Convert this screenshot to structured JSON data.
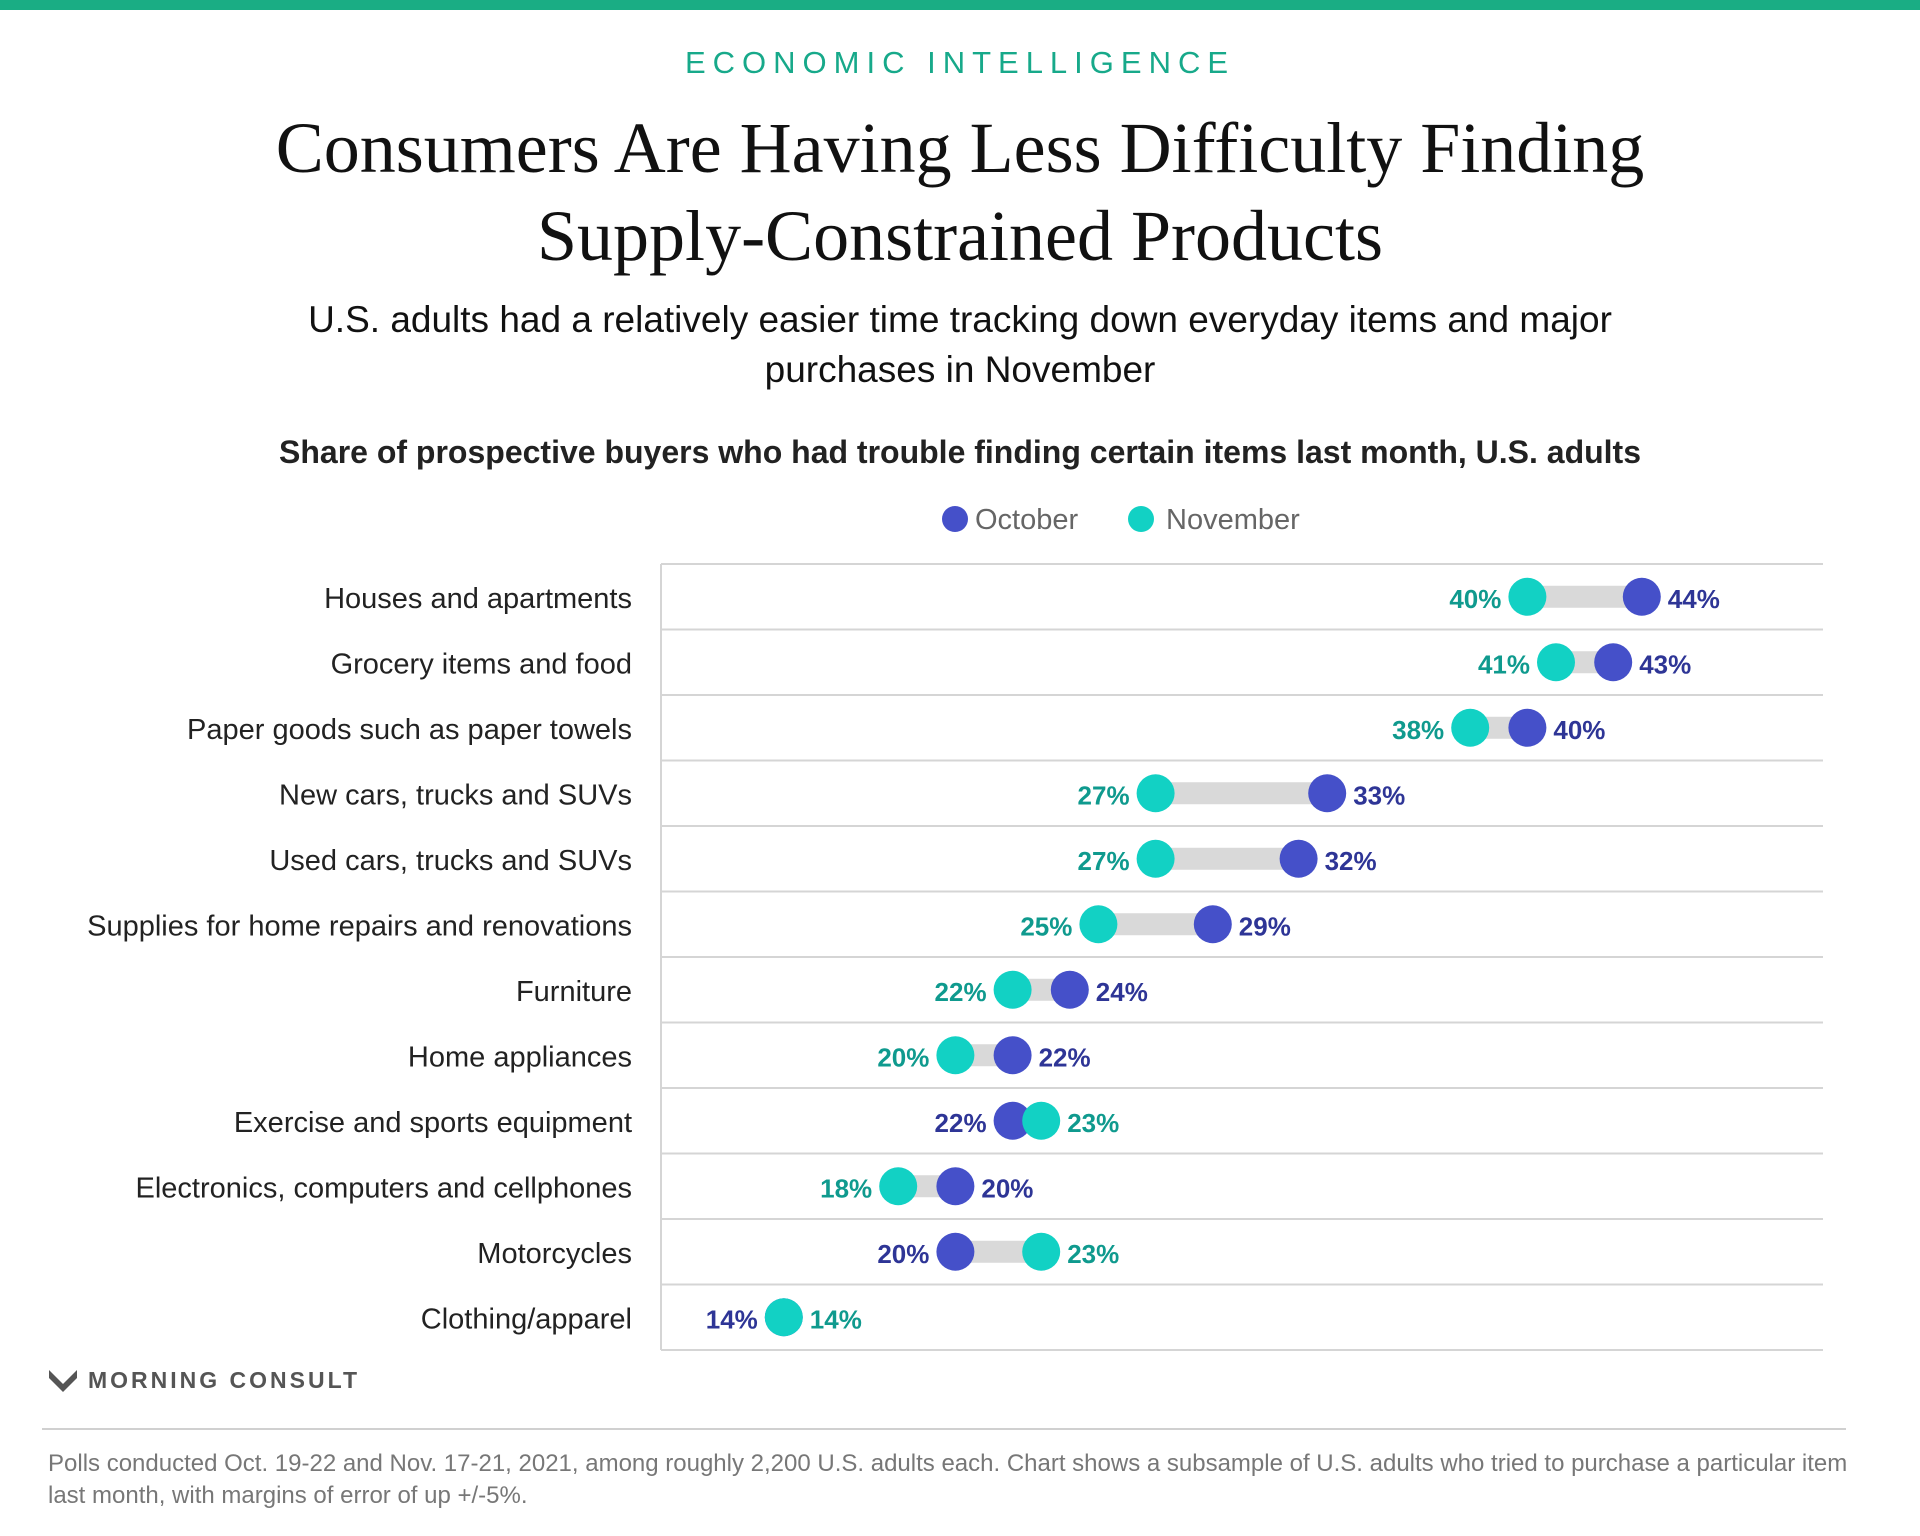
{
  "header": {
    "kicker": "ECONOMIC INTELLIGENCE",
    "title": "Consumers Are Having Less Difficulty Finding Supply-Constrained Products",
    "subtitle": "U.S. adults had a relatively easier time tracking down everyday items and major purchases in November"
  },
  "colors": {
    "top_bar": "#1aad84",
    "kicker": "#17a98a",
    "october_dot": "#4550c9",
    "november_dot": "#12d1c4",
    "october_label": "#2e3596",
    "november_label": "#0f9a8e",
    "connector": "#d9d9d9",
    "gridline": "#d5d5d5"
  },
  "chart_data": {
    "type": "scatter",
    "subtype": "dumbbell",
    "title": "Share of prospective buyers who had trouble finding certain items last month, U.S. adults",
    "legend_placement": "top-center",
    "unit": "%",
    "xlim": [
      0,
      50
    ],
    "categories": [
      "Houses and apartments",
      "Grocery items and food",
      "Paper goods such as paper towels",
      "New cars, trucks and SUVs",
      "Used cars, trucks and SUVs",
      "Supplies for home repairs and renovations",
      "Furniture",
      "Home appliances",
      "Exercise and sports equipment",
      "Electronics, computers and cellphones",
      "Motorcycles",
      "Clothing/apparel"
    ],
    "series": [
      {
        "name": "October",
        "color": "#4550c9",
        "values": [
          44,
          43,
          40,
          33,
          32,
          29,
          24,
          22,
          22,
          20,
          20,
          14
        ]
      },
      {
        "name": "November",
        "color": "#12d1c4",
        "values": [
          40,
          41,
          38,
          27,
          27,
          25,
          22,
          20,
          23,
          18,
          23,
          14
        ]
      }
    ]
  },
  "footer": {
    "brand": "MORNING CONSULT",
    "note": "Polls conducted Oct. 19-22 and Nov. 17-21, 2021, among roughly 2,200 U.S. adults each. Chart shows a subsample of U.S. adults who tried to purchase a particular item last month, with margins of error of up +/-5%."
  }
}
